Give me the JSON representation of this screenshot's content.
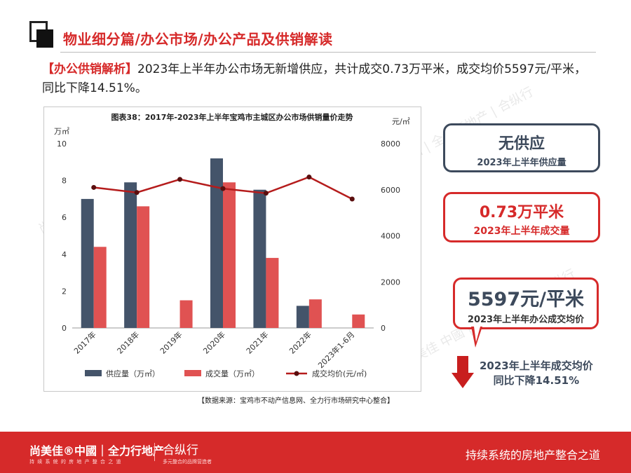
{
  "header": {
    "title": "物业细分篇/办公市场/办公产品及供销解读"
  },
  "intro": {
    "tag": "【办公供销解析】",
    "text": "2023年上半年办公市场无新增供应，共计成交0.73万平米，成交均价5597元/平米，同比下降14.51%。"
  },
  "chart_data": {
    "type": "bar",
    "title": "图表38：2017年-2023年上半年宝鸡市主城区办公市场供销量价走势",
    "categories": [
      "2017年",
      "2018年",
      "2019年",
      "2020年",
      "2021年",
      "2022年",
      "2023年1-6月"
    ],
    "left_unit": "万㎡",
    "right_unit": "元/㎡",
    "left_ticks": [
      "0",
      "2",
      "4",
      "6",
      "8",
      "10"
    ],
    "right_ticks": [
      "0",
      "2000",
      "4000",
      "6000",
      "8000"
    ],
    "ylim_left": [
      0,
      10
    ],
    "ylim_right": [
      0,
      8000
    ],
    "series": [
      {
        "name": "供应量（万㎡）",
        "type": "bar",
        "axis": "left",
        "color": "#44546a",
        "values": [
          7.0,
          7.9,
          0,
          9.2,
          7.5,
          1.2,
          0
        ]
      },
      {
        "name": "成交量（万㎡）",
        "type": "bar",
        "axis": "left",
        "color": "#e05252",
        "values": [
          4.4,
          6.6,
          1.5,
          7.9,
          3.8,
          1.55,
          0.73
        ]
      },
      {
        "name": "成交均价(元/㎡)",
        "type": "line",
        "axis": "right",
        "color": "#b51c1c",
        "values": [
          6100,
          5880,
          6450,
          6050,
          5850,
          6550,
          5597
        ]
      }
    ],
    "legend_position": "bottom",
    "grid": false
  },
  "source": "【数据来源：宝鸡市不动产信息网、全力行市场研究中心整合】",
  "cards": {
    "supply": {
      "big": "无供应",
      "small": "2023年上半年供应量"
    },
    "volume": {
      "big": "0.73万平米",
      "small": "2023年上半年成交量"
    },
    "price": {
      "big": "5597元/平米",
      "small": "2023年上半年办公成交均价"
    },
    "drop": {
      "line1": "2023年上半年成交均价",
      "line2": "同比下降14.51%"
    }
  },
  "footer": {
    "brand1": "尚美佳®中國｜全力行地产",
    "brand1_sub": "持 续 系 统 的 房 地 产 整 合 之 道",
    "brand2": "合纵行",
    "brand2_sub": "多元整合的品牌营造者",
    "slogan": "持续系统的房地产整合之道"
  },
  "watermarks": [
    "尚美佳 中國 | 全力行地产 | 合纵行"
  ],
  "colors": {
    "accent": "#d62a2a",
    "supply_bar": "#44546a",
    "deal_bar": "#e05252",
    "price_line": "#b51c1c"
  }
}
